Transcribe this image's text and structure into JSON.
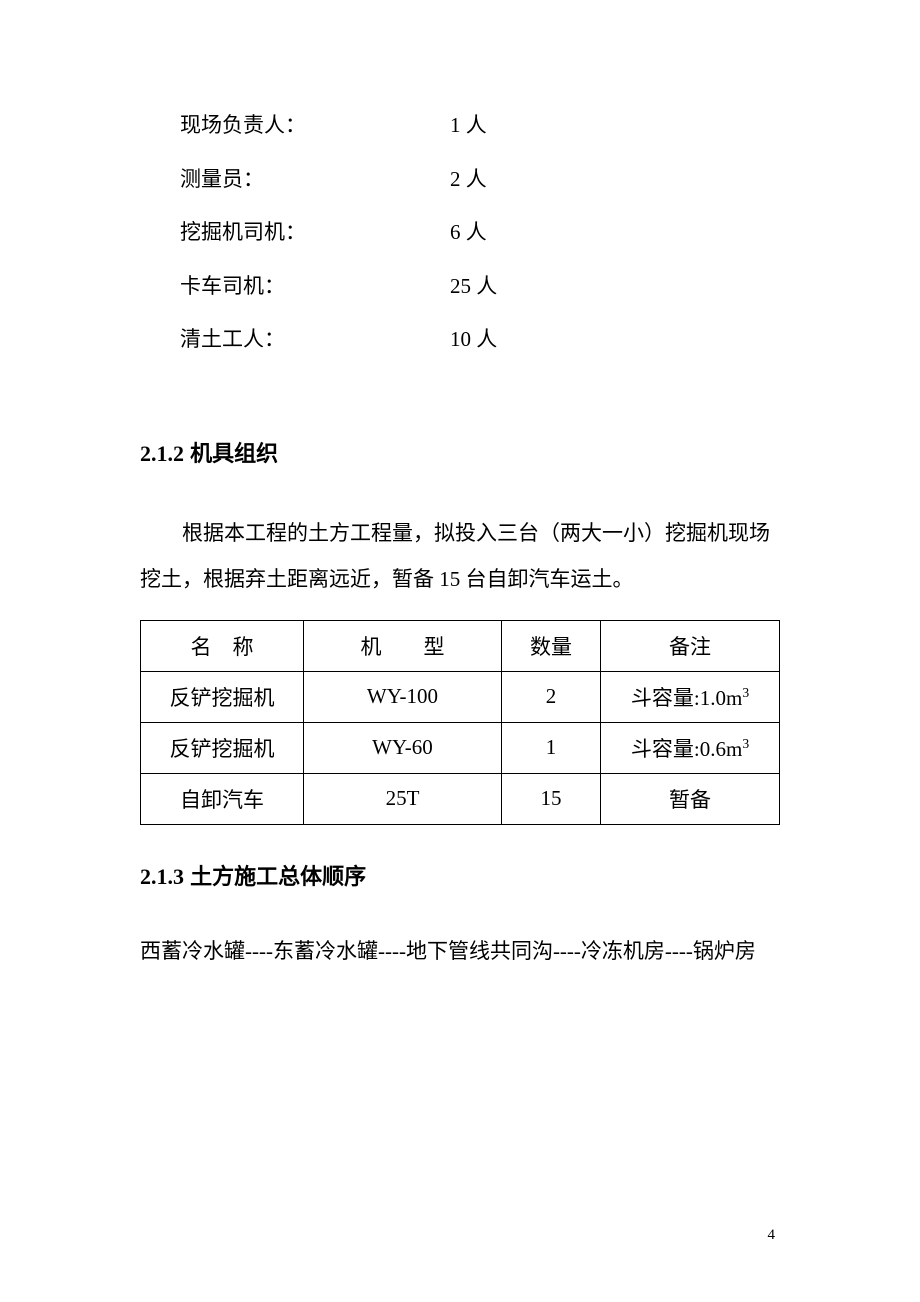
{
  "personnel": [
    {
      "role": "现场负责人：",
      "count": "1 人"
    },
    {
      "role": "测量员：",
      "count": "2 人"
    },
    {
      "role": "挖掘机司机：",
      "count": "6 人"
    },
    {
      "role": "卡车司机：",
      "count": "25 人"
    },
    {
      "role": "清土工人：",
      "count": "10 人"
    }
  ],
  "section212": {
    "number": "2.1.2",
    "title": "机具组织",
    "paragraph": "根据本工程的土方工程量，拟投入三台（两大一小）挖掘机现场挖土，根据弃土距离远近，暂备 15 台自卸汽车运土。"
  },
  "equipTable": {
    "headers": {
      "name_a": "名",
      "name_b": "称",
      "model_a": "机",
      "model_b": "型",
      "qty": "数量",
      "remark": "备注"
    },
    "rows": [
      {
        "name": "反铲挖掘机",
        "model": "WY-100",
        "qty": "2",
        "remark_pre": "斗容量:1.0m",
        "remark_sup": "3"
      },
      {
        "name": "反铲挖掘机",
        "model": "WY-60",
        "qty": "1",
        "remark_pre": "斗容量:0.6m",
        "remark_sup": "3"
      },
      {
        "name": "自卸汽车",
        "model": "25T",
        "qty": "15",
        "remark_pre": "暂备",
        "remark_sup": ""
      }
    ],
    "col_widths": [
      "25.5%",
      "31%",
      "15.5%",
      "28%"
    ],
    "border_color": "#000000",
    "font_size": 21
  },
  "section213": {
    "number": "2.1.3",
    "title": "土方施工总体顺序",
    "sequence": "西蓄冷水罐----东蓄冷水罐----地下管线共同沟----冷冻机房----锅炉房"
  },
  "page_number": "4",
  "colors": {
    "background": "#ffffff",
    "text": "#000000",
    "border": "#000000"
  },
  "typography": {
    "body_font": "SimSun",
    "heading_font": "SimHei",
    "body_size_pt": 16,
    "heading_size_pt": 16
  }
}
